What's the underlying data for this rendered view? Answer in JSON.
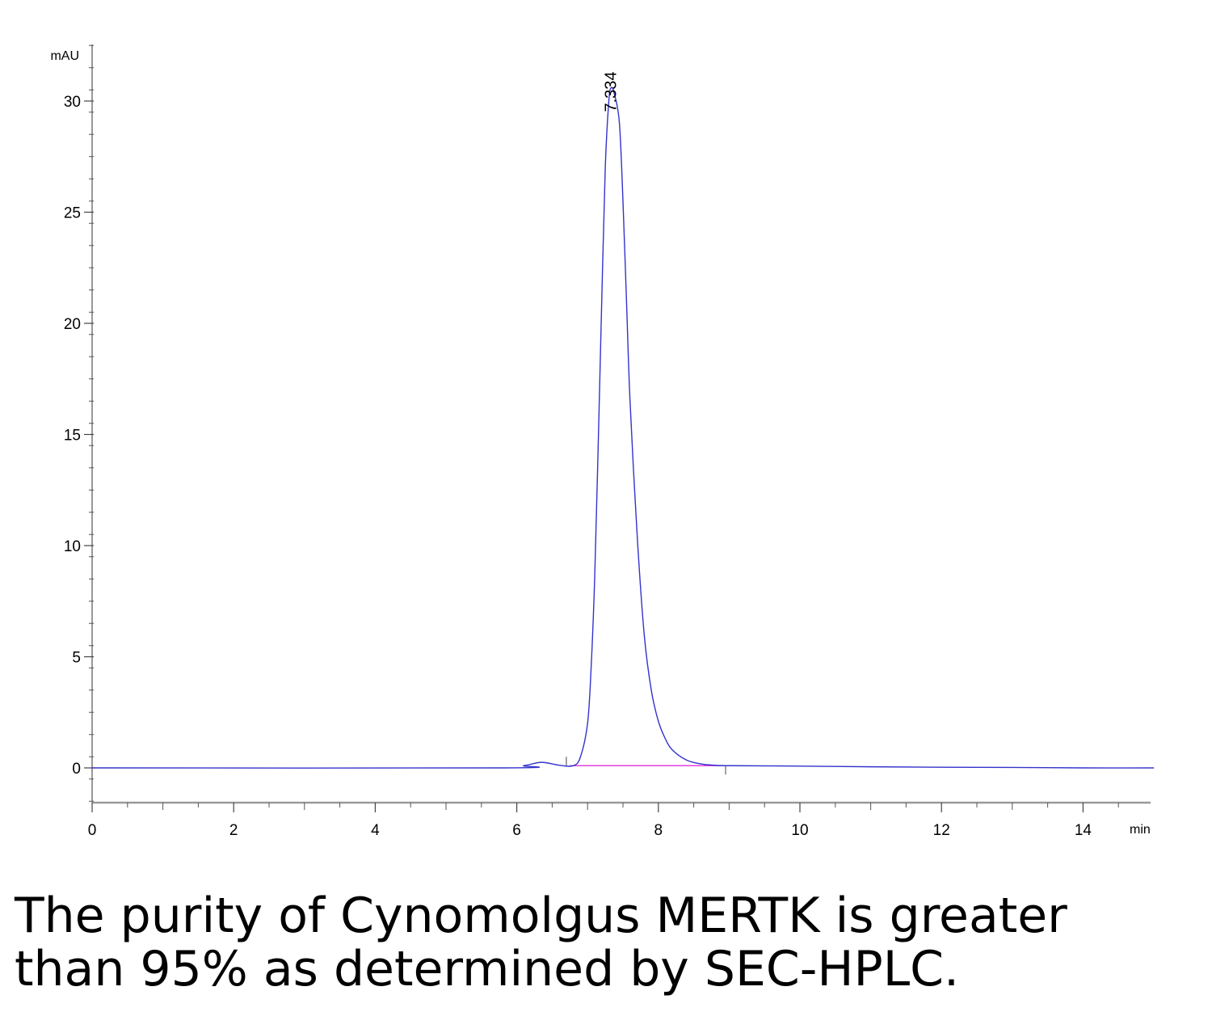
{
  "chart_data": {
    "type": "line",
    "ylabel": "mAU",
    "xlabel": "min",
    "xlim": [
      0,
      15
    ],
    "ylim": [
      -1.6,
      32.5
    ],
    "x_ticks": [
      0,
      2,
      4,
      6,
      8,
      10,
      12,
      14
    ],
    "x_tick_labels": [
      "0",
      "2",
      "4",
      "6",
      "8",
      "10",
      "12",
      "14"
    ],
    "y_ticks": [
      0,
      5,
      10,
      15,
      20,
      25,
      30
    ],
    "y_tick_labels": [
      "0",
      "5",
      "10",
      "15",
      "20",
      "25",
      "30"
    ],
    "grid": false,
    "series": [
      {
        "color": "#3333cc",
        "x": [
          0,
          5.8,
          6.1,
          6.35,
          6.6,
          6.8,
          6.9,
          7.0,
          7.05,
          7.1,
          7.15,
          7.2,
          7.25,
          7.3,
          7.334,
          7.38,
          7.45,
          7.5,
          7.55,
          7.6,
          7.7,
          7.8,
          7.9,
          8.0,
          8.1,
          8.2,
          8.4,
          8.6,
          8.8,
          9.0,
          10.0,
          11.0,
          12.0,
          13.0,
          14.0,
          15.0
        ],
        "y": [
          0,
          0,
          0.1,
          0.25,
          0.12,
          0.1,
          0.5,
          2.0,
          4.5,
          8.5,
          14.5,
          21.0,
          27.0,
          30.0,
          30.6,
          30.3,
          29.0,
          25.5,
          21.0,
          16.5,
          10.5,
          6.0,
          3.5,
          2.1,
          1.3,
          0.8,
          0.35,
          0.18,
          0.12,
          0.1,
          0.08,
          0.05,
          0.03,
          0.02,
          0.0,
          0.0
        ]
      }
    ],
    "baseline": {
      "color": "#e040e0",
      "x": [
        6.75,
        8.95
      ],
      "y": [
        0.1,
        0.1
      ]
    },
    "peak_annotations": [
      {
        "label": "7.334",
        "x": 7.334,
        "y": 30.6
      }
    ]
  },
  "caption": {
    "line1": "The purity of Cynomolgus MERTK is greater",
    "line2": "than 95% as determined by SEC-HPLC."
  }
}
